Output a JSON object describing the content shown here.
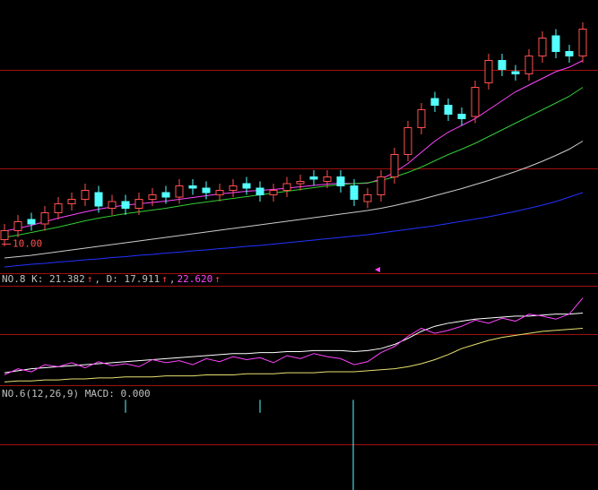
{
  "chart_data": [
    {
      "type": "candlestick",
      "up_color": "#ff5050",
      "down_color": "#54ffff",
      "categories": [
        null,
        null,
        null,
        null,
        null,
        null,
        null,
        null,
        null,
        null,
        null,
        null,
        null,
        null,
        null,
        null,
        null,
        null,
        null,
        null,
        null,
        null,
        null,
        null,
        null,
        null,
        null,
        null,
        null,
        null,
        null,
        null,
        null,
        null,
        null,
        null,
        null,
        null,
        null,
        null,
        null,
        null,
        null,
        null
      ],
      "open": [
        10.1,
        10.3,
        10.55,
        10.45,
        10.7,
        10.9,
        11.0,
        11.15,
        10.8,
        10.95,
        10.8,
        11.0,
        11.15,
        11.05,
        11.3,
        11.25,
        11.1,
        11.2,
        11.35,
        11.25,
        11.1,
        11.2,
        11.35,
        11.5,
        11.4,
        11.5,
        11.3,
        10.95,
        11.1,
        11.5,
        12.0,
        12.6,
        13.25,
        13.1,
        12.9,
        12.85,
        13.6,
        14.1,
        13.85,
        13.8,
        14.2,
        14.65,
        14.3,
        14.2
      ],
      "high": [
        10.45,
        10.65,
        10.7,
        10.85,
        11.05,
        11.15,
        11.35,
        11.3,
        11.1,
        11.1,
        11.15,
        11.25,
        11.3,
        11.45,
        11.45,
        11.4,
        11.35,
        11.45,
        11.5,
        11.4,
        11.35,
        11.5,
        11.55,
        11.65,
        11.65,
        11.65,
        11.45,
        11.25,
        11.65,
        12.15,
        12.75,
        13.15,
        13.4,
        13.25,
        13.05,
        13.65,
        14.25,
        14.25,
        14.0,
        14.35,
        14.75,
        14.8,
        14.45,
        14.95
      ],
      "low": [
        9.95,
        10.15,
        10.3,
        10.3,
        10.55,
        10.75,
        10.85,
        10.7,
        10.65,
        10.65,
        10.65,
        10.85,
        10.9,
        10.9,
        11.1,
        11.0,
        10.95,
        11.05,
        11.1,
        10.95,
        10.95,
        11.05,
        11.2,
        11.3,
        11.25,
        11.15,
        10.85,
        10.8,
        10.95,
        11.35,
        11.85,
        12.45,
        12.95,
        12.75,
        12.65,
        12.7,
        13.45,
        13.75,
        13.65,
        13.65,
        14.05,
        14.15,
        14.05,
        14.05
      ],
      "close": [
        10.3,
        10.5,
        10.45,
        10.7,
        10.9,
        11.0,
        11.2,
        10.85,
        10.95,
        10.8,
        11.0,
        11.1,
        11.05,
        11.3,
        11.25,
        11.15,
        11.2,
        11.3,
        11.25,
        11.1,
        11.2,
        11.35,
        11.4,
        11.45,
        11.5,
        11.3,
        11.0,
        11.1,
        11.5,
        12.0,
        12.6,
        13.0,
        13.1,
        12.9,
        12.8,
        13.5,
        14.1,
        13.9,
        13.8,
        14.2,
        14.6,
        14.3,
        14.2,
        14.8
      ],
      "series": [
        {
          "color": "#ff44ff",
          "values": [
            10.29,
            10.35,
            10.42,
            10.5,
            10.58,
            10.65,
            10.72,
            10.78,
            10.83,
            10.87,
            10.9,
            10.93,
            10.96,
            11.0,
            11.04,
            11.08,
            11.12,
            11.15,
            11.18,
            11.2,
            11.22,
            11.25,
            11.28,
            11.31,
            11.34,
            11.36,
            11.35,
            11.36,
            11.45,
            11.6,
            11.8,
            12.05,
            12.3,
            12.5,
            12.65,
            12.8,
            13.0,
            13.2,
            13.4,
            13.55,
            13.7,
            13.85,
            13.95,
            14.1
          ]
        },
        {
          "color": "#33cc33",
          "values": [
            10.15,
            10.2,
            10.26,
            10.32,
            10.38,
            10.45,
            10.52,
            10.58,
            10.63,
            10.68,
            10.72,
            10.76,
            10.8,
            10.85,
            10.9,
            10.94,
            10.98,
            11.02,
            11.06,
            11.1,
            11.14,
            11.18,
            11.22,
            11.26,
            11.3,
            11.33,
            11.35,
            11.37,
            11.42,
            11.5,
            11.6,
            11.72,
            11.86,
            12.0,
            12.12,
            12.25,
            12.4,
            12.55,
            12.7,
            12.85,
            13.0,
            13.15,
            13.3,
            13.5
          ]
        },
        {
          "color": "#cccccc",
          "values": [
            9.69,
            9.72,
            9.75,
            9.79,
            9.83,
            9.87,
            9.91,
            9.95,
            9.99,
            10.03,
            10.07,
            10.11,
            10.15,
            10.19,
            10.23,
            10.27,
            10.31,
            10.35,
            10.39,
            10.43,
            10.47,
            10.51,
            10.55,
            10.59,
            10.63,
            10.67,
            10.71,
            10.75,
            10.8,
            10.86,
            10.93,
            11.0,
            11.08,
            11.16,
            11.24,
            11.33,
            11.42,
            11.52,
            11.62,
            11.73,
            11.85,
            11.98,
            12.12,
            12.3
          ]
        },
        {
          "color": "#2233ff",
          "values": [
            9.49,
            9.52,
            9.55,
            9.57,
            9.6,
            9.62,
            9.65,
            9.67,
            9.7,
            9.72,
            9.75,
            9.77,
            9.8,
            9.82,
            9.85,
            9.87,
            9.9,
            9.92,
            9.95,
            9.97,
            10.0,
            10.03,
            10.06,
            10.09,
            10.12,
            10.15,
            10.18,
            10.21,
            10.25,
            10.29,
            10.33,
            10.37,
            10.41,
            10.46,
            10.51,
            10.56,
            10.61,
            10.67,
            10.73,
            10.8,
            10.87,
            10.95,
            11.05,
            11.15
          ]
        }
      ],
      "ylim": [
        9.35,
        15.45
      ],
      "price_marker": {
        "value": 10,
        "label": "10.00"
      }
    },
    {
      "type": "line",
      "title": [
        {
          "text": "NO.8 K: 21.382",
          "color": "#c0c0c0"
        },
        {
          "text": "↑",
          "color": "#ff4040"
        },
        {
          "text": ", D: 17.911",
          "color": "#c0c0c0"
        },
        {
          "text": "↑",
          "color": "#ff4040"
        },
        {
          "text": ",",
          "color": "#c0c0c0"
        },
        {
          "text": "22.620",
          "color": "#ff44ff"
        },
        {
          "text": "↑",
          "color": "#ff4040"
        }
      ],
      "categories": [
        null,
        null,
        null,
        null,
        null,
        null,
        null,
        null,
        null,
        null,
        null,
        null,
        null,
        null,
        null,
        null,
        null,
        null,
        null,
        null,
        null,
        null,
        null,
        null,
        null,
        null,
        null,
        null,
        null,
        null,
        null,
        null,
        null,
        null,
        null,
        null,
        null,
        null,
        null,
        null,
        null,
        null,
        null,
        null
      ],
      "series": [
        {
          "color": "#ffffff",
          "values": [
            14,
            16,
            18,
            19,
            20,
            21,
            22,
            23,
            24,
            25,
            26,
            27,
            28,
            29,
            30,
            31,
            32,
            33,
            33,
            34,
            34,
            35,
            35,
            36,
            36,
            36,
            35,
            36,
            38,
            42,
            48,
            55,
            60,
            63,
            65,
            67,
            68,
            69,
            70,
            70,
            71,
            72,
            72,
            73
          ]
        },
        {
          "color": "#ff44ff",
          "values": [
            12,
            18,
            15,
            22,
            20,
            24,
            19,
            25,
            21,
            23,
            20,
            27,
            24,
            26,
            22,
            28,
            25,
            30,
            27,
            29,
            24,
            31,
            28,
            33,
            30,
            28,
            22,
            25,
            34,
            40,
            50,
            58,
            53,
            56,
            60,
            66,
            63,
            68,
            65,
            72,
            70,
            67,
            72,
            88
          ]
        },
        {
          "color": "#e8e070",
          "values": [
            5,
            6,
            6,
            7,
            7,
            8,
            8,
            9,
            9,
            10,
            10,
            10,
            11,
            11,
            11,
            12,
            12,
            12,
            13,
            13,
            13,
            14,
            14,
            14,
            15,
            15,
            15,
            16,
            17,
            18,
            20,
            23,
            27,
            32,
            38,
            42,
            46,
            49,
            51,
            53,
            55,
            56,
            57,
            58
          ]
        }
      ],
      "ylim": [
        0,
        100
      ]
    },
    {
      "type": "bar",
      "title": [
        {
          "text": "NO.6(12,26,9) MACD: 0.000",
          "color": "#c0c0c0"
        }
      ],
      "categories": [
        null,
        null,
        null,
        null,
        null,
        null,
        null,
        null,
        null,
        null,
        null,
        null,
        null,
        null,
        null,
        null,
        null,
        null,
        null,
        null,
        null,
        null,
        null,
        null,
        null,
        null,
        null,
        null,
        null,
        null,
        null,
        null,
        null,
        null,
        null,
        null,
        null,
        null,
        null,
        null,
        null,
        null,
        null,
        null
      ],
      "values": [
        null,
        null,
        null,
        null,
        null,
        null,
        null,
        null,
        null,
        -0.02,
        null,
        null,
        null,
        null,
        null,
        null,
        null,
        null,
        null,
        -0.02,
        null,
        null,
        null,
        null,
        null,
        null,
        -0.14,
        null,
        null,
        null,
        null,
        null,
        null,
        null,
        null,
        null,
        null,
        null,
        null,
        null,
        null,
        null,
        null,
        null
      ],
      "color": "#54ffff",
      "ylim": [
        -0.14,
        0.02
      ]
    }
  ]
}
